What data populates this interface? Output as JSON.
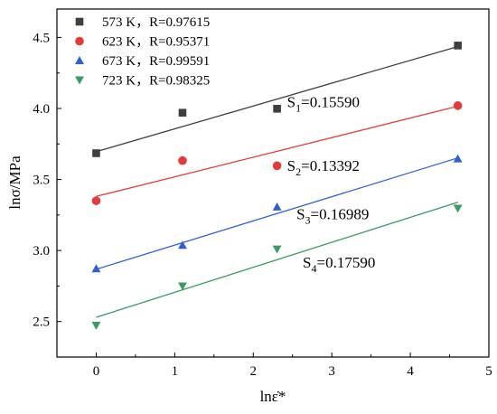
{
  "chart_data": {
    "type": "scatter",
    "xlabel": "lnε̇*",
    "ylabel": "lnσ/MPa",
    "xlim": [
      -0.5,
      5
    ],
    "ylim": [
      2.25,
      4.7
    ],
    "xticks": [
      0,
      1,
      2,
      3,
      4,
      5
    ],
    "yticks": [
      2.5,
      3.0,
      3.5,
      4.0,
      4.5
    ],
    "xtick_labels": [
      "0",
      "1",
      "2",
      "3",
      "4",
      "5"
    ],
    "ytick_labels": [
      "2.5",
      "3.0",
      "3.5",
      "4.0",
      "4.5"
    ],
    "grid": false,
    "legend_position": "top-left",
    "series": [
      {
        "name": "573 K，R=0.97615",
        "marker": "square",
        "color": "#3f3f3f",
        "x": [
          0,
          1.099,
          2.303,
          4.605
        ],
        "y": [
          3.685,
          3.97,
          3.998,
          4.443
        ],
        "fit": {
          "x": [
            0,
            4.605
          ],
          "y": [
            3.696,
            4.436
          ]
        }
      },
      {
        "name": "623 K，R=0.95371",
        "marker": "circle",
        "color": "#e53a3a",
        "x": [
          0,
          1.099,
          2.303,
          4.605
        ],
        "y": [
          3.35,
          3.633,
          3.597,
          4.02
        ],
        "fit": {
          "x": [
            0,
            4.605
          ],
          "y": [
            3.381,
            4.016
          ]
        }
      },
      {
        "name": "673 K，R=0.99591",
        "marker": "triangle-up",
        "color": "#2f5fd6",
        "x": [
          0,
          1.099,
          2.303,
          4.605
        ],
        "y": [
          2.872,
          3.037,
          3.307,
          3.646
        ],
        "fit": {
          "x": [
            0,
            4.605
          ],
          "y": [
            2.868,
            3.652
          ]
        }
      },
      {
        "name": "723 K，R=0.98325",
        "marker": "triangle-down",
        "color": "#3c9a64",
        "x": [
          0,
          1.099,
          2.303,
          4.605
        ],
        "y": [
          2.473,
          2.75,
          3.01,
          3.297
        ],
        "fit": {
          "x": [
            0,
            4.605
          ],
          "y": [
            2.53,
            3.34
          ]
        }
      }
    ],
    "annotations": [
      {
        "id": "s1",
        "prefix": "S",
        "sub": "1",
        "value": "=0.15590",
        "x": 2.43,
        "y": 4.01
      },
      {
        "id": "s2",
        "prefix": "S",
        "sub": "2",
        "value": "=0.13392",
        "x": 2.43,
        "y": 3.56
      },
      {
        "id": "s3",
        "prefix": "S",
        "sub": "3",
        "value": "=0.16989",
        "x": 2.55,
        "y": 3.22
      },
      {
        "id": "s4",
        "prefix": "S",
        "sub": "4",
        "value": "=0.17590",
        "x": 2.63,
        "y": 2.88
      }
    ]
  }
}
